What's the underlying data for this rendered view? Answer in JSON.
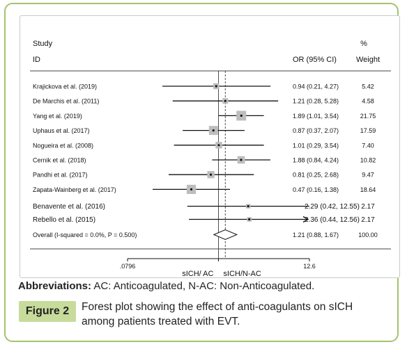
{
  "chart_data": {
    "type": "forest",
    "header": {
      "study_line1": "Study",
      "study_line2": "ID",
      "effect_label": "OR (95% CI)",
      "weight_line1": "%",
      "weight_line2": "Weight"
    },
    "studies": [
      {
        "label": "Krajickova et al. (2019)",
        "or": 0.94,
        "lo": 0.21,
        "hi": 4.27,
        "ci_text": "0.94 (0.21, 4.27)",
        "weight": 5.42,
        "weight_text": "5.42"
      },
      {
        "label": "De Marchis et al. (2011)",
        "or": 1.21,
        "lo": 0.28,
        "hi": 5.28,
        "ci_text": "1.21 (0.28, 5.28)",
        "weight": 4.58,
        "weight_text": "4.58"
      },
      {
        "label": "Yang et al. (2019)",
        "or": 1.89,
        "lo": 1.01,
        "hi": 3.54,
        "ci_text": "1.89 (1.01, 3.54)",
        "weight": 21.75,
        "weight_text": "21.75"
      },
      {
        "label": "Uphaus et al. (2017)",
        "or": 0.87,
        "lo": 0.37,
        "hi": 2.07,
        "ci_text": "0.87 (0.37, 2.07)",
        "weight": 17.59,
        "weight_text": "17.59"
      },
      {
        "label": "Nogueira et al. (2008)",
        "or": 1.01,
        "lo": 0.29,
        "hi": 3.54,
        "ci_text": "1.01 (0.29, 3.54)",
        "weight": 7.4,
        "weight_text": "7.40"
      },
      {
        "label": "Cernik et al. (2018)",
        "or": 1.88,
        "lo": 0.84,
        "hi": 4.24,
        "ci_text": "1.88 (0.84, 4.24)",
        "weight": 10.82,
        "weight_text": "10.82"
      },
      {
        "label": "Pandhi et al. (2017)",
        "or": 0.81,
        "lo": 0.25,
        "hi": 2.68,
        "ci_text": "0.81 (0.25, 2.68)",
        "weight": 9.47,
        "weight_text": "9.47"
      },
      {
        "label": "Zapata-Wainberg et al. (2017)",
        "or": 0.47,
        "lo": 0.16,
        "hi": 1.38,
        "ci_text": "0.47 (0.16, 1.38)",
        "weight": 18.64,
        "weight_text": "18.64"
      },
      {
        "label": "Benavente et al. (2016)",
        "or": 2.29,
        "lo": 0.42,
        "hi": 12.55,
        "ci_text": "2.29 (0.42, 12.55)",
        "weight": 2.17,
        "weight_text": "2.17"
      },
      {
        "label": "Rebello et al. (2015)",
        "or": 2.36,
        "lo": 0.44,
        "hi": 12.56,
        "ci_text": "2.36 (0.44, 12.56)",
        "weight": 2.17,
        "weight_text": "2.17",
        "arrow": true
      }
    ],
    "overall": {
      "label": "Overall (I-squared = 0.0%, P = 0.500)",
      "or": 1.21,
      "lo": 0.88,
      "hi": 1.67,
      "ci_text": "1.21 (0.88, 1.67)",
      "weight_text": "100.00"
    },
    "x_axis": {
      "scale": "log",
      "min": 0.0796,
      "max": 12.6,
      "null_value": 1,
      "tick_labels": [
        ".0796",
        "12.6"
      ],
      "tick_values": [
        0.0796,
        12.6
      ]
    },
    "favours": {
      "left": "sICH/ AC",
      "right": "sICH/N-AC"
    }
  },
  "caption": {
    "abbr_title": "Abbreviations:",
    "abbr_text": " AC: Anticoagulated, N-AC: Non-Anticoagulated.",
    "figure_label": "Figure 2",
    "figure_text": "Forest plot showing the effect of anti-coagulants on sICH among patients treated with EVT."
  }
}
